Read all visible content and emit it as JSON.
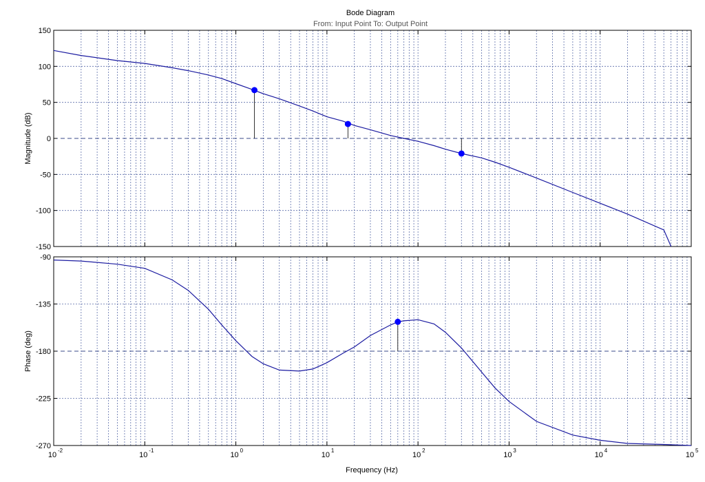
{
  "figure": {
    "title": "Bode Diagram",
    "subtitle": "From: Input Point  To: Output Point",
    "xlabel": "Frequency  (Hz)"
  },
  "colors": {
    "curve": "#1a1aa0",
    "marker": "#0000ff",
    "grid": "#5a6ca8",
    "axes": "#000000",
    "stem": "#000000"
  },
  "chart_data": [
    {
      "type": "line",
      "name": "magnitude",
      "ylabel": "Magnitude (dB)",
      "xscale": "log",
      "xlim": [
        0.01,
        100000
      ],
      "ylim": [
        -150,
        150
      ],
      "yticks": [
        150,
        100,
        50,
        0,
        -50,
        -100,
        -150
      ],
      "grid": true,
      "reference_line": 0,
      "series": [
        {
          "x": [
            0.01,
            0.02,
            0.05,
            0.1,
            0.2,
            0.3,
            0.5,
            0.7,
            1,
            1.5,
            2,
            3,
            5,
            7,
            10,
            15,
            20,
            30,
            50,
            70,
            100,
            150,
            200,
            300,
            500,
            700,
            1000,
            2000,
            5000,
            10000,
            20000,
            50000,
            60000
          ],
          "y": [
            122,
            115,
            108,
            104,
            98,
            94,
            88,
            83,
            76,
            68,
            62,
            55,
            45,
            38,
            30,
            24,
            18,
            12,
            4,
            0,
            -4,
            -10,
            -15,
            -21,
            -27,
            -33,
            -40,
            -55,
            -75,
            -90,
            -105,
            -127,
            -150
          ]
        }
      ],
      "markers": [
        {
          "x": 1.6,
          "y": 67
        },
        {
          "x": 17,
          "y": 20
        },
        {
          "x": 300,
          "y": -21
        }
      ]
    },
    {
      "type": "line",
      "name": "phase",
      "ylabel": "Phase (deg)",
      "xscale": "log",
      "xlim": [
        0.01,
        100000
      ],
      "ylim": [
        -270,
        -90
      ],
      "yticks": [
        -90,
        -135,
        -180,
        -225,
        -270
      ],
      "grid": true,
      "reference_line": -180,
      "series": [
        {
          "x": [
            0.01,
            0.02,
            0.05,
            0.1,
            0.2,
            0.3,
            0.5,
            0.7,
            1,
            1.5,
            2,
            3,
            5,
            7,
            10,
            15,
            20,
            30,
            50,
            60,
            70,
            100,
            150,
            200,
            300,
            500,
            700,
            1000,
            2000,
            5000,
            10000,
            20000,
            50000,
            100000
          ],
          "y": [
            -93,
            -94,
            -97,
            -101,
            -112,
            -122,
            -140,
            -155,
            -170,
            -185,
            -192,
            -198,
            -199,
            -197,
            -191,
            -182,
            -176,
            -165,
            -155,
            -152,
            -151,
            -150,
            -154,
            -162,
            -177,
            -200,
            -215,
            -228,
            -247,
            -260,
            -265,
            -268,
            -269,
            -270
          ]
        }
      ],
      "markers": [
        {
          "x": 60,
          "y": -152
        }
      ]
    }
  ],
  "xtick_labels": [
    "10",
    "10",
    "10",
    "10",
    "10",
    "10",
    "10",
    "10"
  ],
  "xtick_exponents": [
    "-2",
    "-1",
    "0",
    "1",
    "2",
    "3",
    "4",
    "5"
  ]
}
